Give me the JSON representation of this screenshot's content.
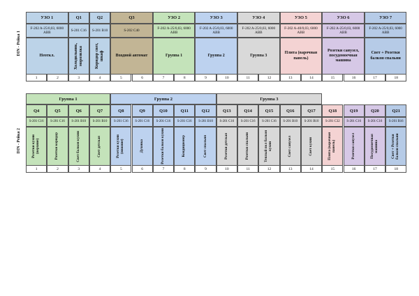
{
  "rail1": {
    "label": "DIN - Рейка 1",
    "cells": [
      {
        "id": "УЗО 1",
        "device": "F-202 A-25/0,03, 6000 ABB",
        "func": "Неоткл.",
        "color": "#bcd3e8",
        "start": 1,
        "span": 2
      },
      {
        "id": "Q1",
        "device": "S-201 C16",
        "func": "Холодильник, морозилка",
        "color": "#bcd3e8",
        "start": 3,
        "span": 1,
        "vertical": true
      },
      {
        "id": "Q2",
        "device": "S-201 B10",
        "func": "Коридор свет, шкаф",
        "color": "#bcd3e8",
        "start": 4,
        "span": 1,
        "vertical": true
      },
      {
        "id": "Q3",
        "device": "S-202 C40",
        "func": "Входной автомат",
        "color": "#c2b595",
        "start": 5,
        "span": 2
      },
      {
        "id": "УЗО 2",
        "device": "F-202 A-25/0,03, 6000 ABB",
        "func": "Группа 1",
        "color": "#c4e3ba",
        "start": 7,
        "span": 2
      },
      {
        "id": "УЗО 3",
        "device": "F-202 A-25/0,03, 6000 ABB",
        "func": "Группа 2",
        "color": "#bdd2ef",
        "start": 9,
        "span": 2
      },
      {
        "id": "УЗО 4",
        "device": "F-202 A-25/0,03, 6000 ABB",
        "func": "Группа 3",
        "color": "#d9d9d9",
        "start": 11,
        "span": 2
      },
      {
        "id": "УЗО 5",
        "device": "F-202 A-40/0,03, 6000 ABB",
        "func": "Плита (варочная панель)",
        "color": "#f4d3d3",
        "start": 13,
        "span": 2
      },
      {
        "id": "УЗО 6",
        "device": "F-202 A-25/0,03, 6000 ABB",
        "func": "Розетки санузел, посудомоечная машина",
        "color": "#d6c8e6",
        "start": 15,
        "span": 2
      },
      {
        "id": "УЗО 7",
        "device": "F-202 A-25/0,03, 6000 ABB",
        "func": "Свет + Розетки балкон спальни",
        "color": "#b6cbe7",
        "start": 17,
        "span": 2
      }
    ],
    "numbers": [
      "1",
      "2",
      "3",
      "4",
      "5",
      "6",
      "7",
      "8",
      "9",
      "10",
      "11",
      "12",
      "13",
      "14",
      "15",
      "16",
      "17",
      "18"
    ]
  },
  "rail2": {
    "label": "DIN - Рейка 2",
    "groups": [
      {
        "label": "Группа 1",
        "color": "#c4e3ba",
        "start": 1,
        "span": 4
      },
      {
        "label": "Группа 2",
        "color": "#bdd2ef",
        "start": 5,
        "span": 5
      },
      {
        "label": "Группа 3",
        "color": "#d9d9d9",
        "start": 10,
        "span": 5
      }
    ],
    "cells": [
      {
        "id": "Q4",
        "device": "S-201 C16",
        "func": "Розетки кухни (верхние)",
        "color": "#c4e3ba"
      },
      {
        "id": "Q5",
        "device": "S-201 C16",
        "func": "Розетки коридор",
        "color": "#c4e3ba"
      },
      {
        "id": "Q6",
        "device": "S-201 B10",
        "func": "Свет балкон кухни",
        "color": "#c4e3ba"
      },
      {
        "id": "Q7",
        "device": "S-201 B10",
        "func": "Свет детская",
        "color": "#c4e3ba"
      },
      {
        "id": "Q8",
        "device": "S-201 C16",
        "func": "Розетки кухни (нижние)",
        "color": "#bdd2ef"
      },
      {
        "id": "Q9",
        "device": "S-201 C16",
        "func": "Духовка",
        "color": "#bdd2ef"
      },
      {
        "id": "Q10",
        "device": "S-201 C16",
        "func": "Розетки балкон кухни",
        "color": "#bdd2ef"
      },
      {
        "id": "Q11",
        "device": "S-201 C16",
        "func": "Кондиционер",
        "color": "#bdd2ef"
      },
      {
        "id": "Q12",
        "device": "S-201 B10",
        "func": "Свет спальня",
        "color": "#bdd2ef"
      },
      {
        "id": "Q13",
        "device": "S-201 C16",
        "func": "Розетки детская",
        "color": "#d9d9d9"
      },
      {
        "id": "Q14",
        "device": "S-201 C16",
        "func": "Розетки спальни",
        "color": "#d9d9d9"
      },
      {
        "id": "Q15",
        "device": "S-201 C16",
        "func": "Теплый пол балкон кухни",
        "color": "#d9d9d9"
      },
      {
        "id": "Q16",
        "device": "S-201 B10",
        "func": "Свет санузел",
        "color": "#d9d9d9"
      },
      {
        "id": "Q17",
        "device": "S-201 B10",
        "func": "Свет кухни",
        "color": "#d9d9d9"
      },
      {
        "id": "Q18",
        "device": "S-201 C32",
        "func": "Плита (варочная панель)",
        "color": "#f4d3d3"
      },
      {
        "id": "Q19",
        "device": "S-201 C16",
        "func": "Розетки санузел",
        "color": "#d6c8e6"
      },
      {
        "id": "Q20",
        "device": "S-201 C16",
        "func": "Посудомоечная машина",
        "color": "#d6c8e6"
      },
      {
        "id": "Q21",
        "device": "S-201 B16",
        "func": "Свет + Розетки балкон спальни",
        "color": "#b6cbe7"
      }
    ],
    "numbers": [
      "1",
      "2",
      "3",
      "4",
      "5",
      "6",
      "7",
      "8",
      "9",
      "10",
      "11",
      "12",
      "13",
      "14",
      "15",
      "16",
      "17",
      "18"
    ]
  }
}
